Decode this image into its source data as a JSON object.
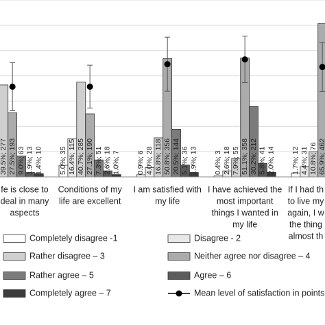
{
  "chart_data": {
    "type": "bar",
    "categories": [
      [
        "fe is close to",
        "deal in many",
        "aspects"
      ],
      [
        "Conditions of my",
        "life are excellent"
      ],
      [
        "I am satisfied with",
        "my life"
      ],
      [
        "I have achieved the",
        "most important",
        "things I wanted in",
        "my life"
      ],
      [
        "If I had th",
        "to live my",
        "again, I w",
        "the thing",
        "almost th"
      ]
    ],
    "ylim": [
      0,
      76
    ],
    "y2lim": [
      0,
      7
    ],
    "y2ticks": [
      0,
      1,
      2,
      3,
      4,
      5,
      6,
      7
    ],
    "grid": true,
    "series": [
      {
        "name": "Completely disagree  -1",
        "color": "#ffffff",
        "values": [
          null,
          5.0,
          0.9,
          0.4,
          1.7
        ],
        "value_labels": [
          null,
          "5.0%; 35",
          "0.9%; 6",
          "0.4%; 3",
          "1.7%; 12"
        ]
      },
      {
        "name": "Disagree - 2",
        "color": "#e8e8e8",
        "values": [
          null,
          16.4,
          4.0,
          2.6,
          4.4
        ],
        "value_labels": [
          null,
          "16.4%; 115",
          "4.0%; 28",
          "2.6%; 18",
          "4.4%; 31"
        ]
      },
      {
        "name": "Rather disagree – 3",
        "color": "#cfcfcf",
        "values": [
          39.5,
          40.7,
          16.8,
          7.9,
          10.8
        ],
        "value_labels": [
          "39.5%; 277",
          "40.7%; 285",
          "16.8%; 118",
          "7.9%; 55",
          "10.8%; 76"
        ]
      },
      {
        "name": "Neither agree nor disagree – 4",
        "color": "#ababab",
        "values": [
          27.5,
          27.1,
          50.8,
          51.1,
          65.9
        ],
        "value_labels": [
          "27.5%; 193",
          "27.1%; 190",
          "50.8%; 356",
          "51.1%; 358",
          "65.9%; 462"
        ]
      },
      {
        "name": "Rather agree – 5",
        "color": "#7b7b7b",
        "values": [
          9.0,
          7.3,
          20.5,
          30.2,
          null
        ],
        "value_labels": [
          "9.0%; 63",
          "7.3%; 51",
          "20.5%; 144",
          "30.2%; 212",
          null
        ]
      },
      {
        "name": "Agree – 6",
        "color": "#5c5c5c",
        "values": [
          1.9,
          2.6,
          5.1,
          5.8,
          null
        ],
        "value_labels": [
          "1.9%; 13",
          "2.6%; 18",
          "5.1%; 36",
          "5.8%; 41",
          null
        ]
      },
      {
        "name": "Completely agree – 7",
        "color": "#3c3c3c",
        "values": [
          1.4,
          1.0,
          1.9,
          2.0,
          null
        ],
        "value_labels": [
          "1.4%; 10",
          "1.0%; 7",
          "1.9%; 13",
          "2.0%; 14",
          null
        ]
      },
      {
        "name": "Mean level of satisfaction in points",
        "type": "errorbar",
        "axis": "y2",
        "color": "#000000",
        "values": [
          3.57,
          3.57,
          4.46,
          4.65,
          4.35
        ],
        "errors": [
          0.95,
          0.85,
          1.07,
          0.92,
          0.97
        ]
      }
    ]
  }
}
